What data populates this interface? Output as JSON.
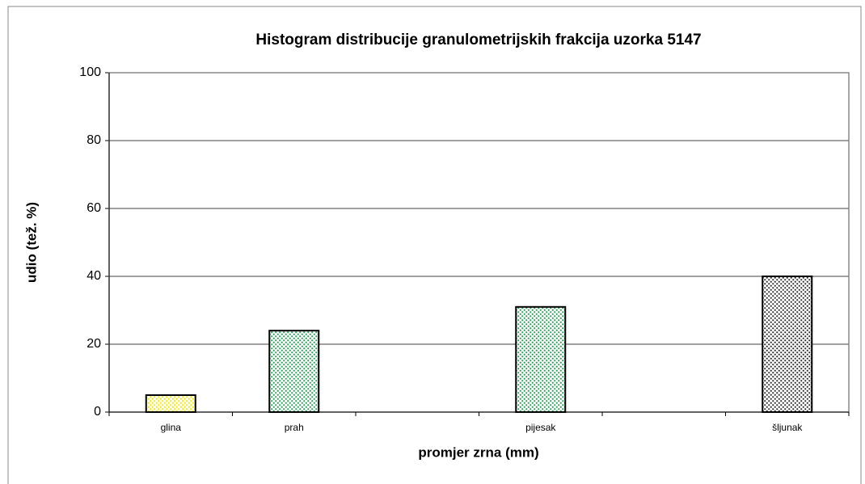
{
  "chart_data": {
    "type": "bar",
    "title": "Histogram distribucije granulometrijskih frakcija uzorka 5147",
    "x_label": "promjer zrna (mm)",
    "y_label": "udio (tež. %)",
    "categories": [
      "glina",
      "prah",
      null,
      "pijesak",
      null,
      "šljunak"
    ],
    "values": [
      5,
      24,
      null,
      31,
      null,
      40
    ],
    "colors": [
      "#f2e600",
      "#2e9e5b",
      null,
      "#2e9e5b",
      null,
      "#333333"
    ],
    "ylim": [
      0,
      100
    ],
    "yticks": [
      0,
      20,
      40,
      60,
      80,
      100
    ],
    "grid": true
  }
}
